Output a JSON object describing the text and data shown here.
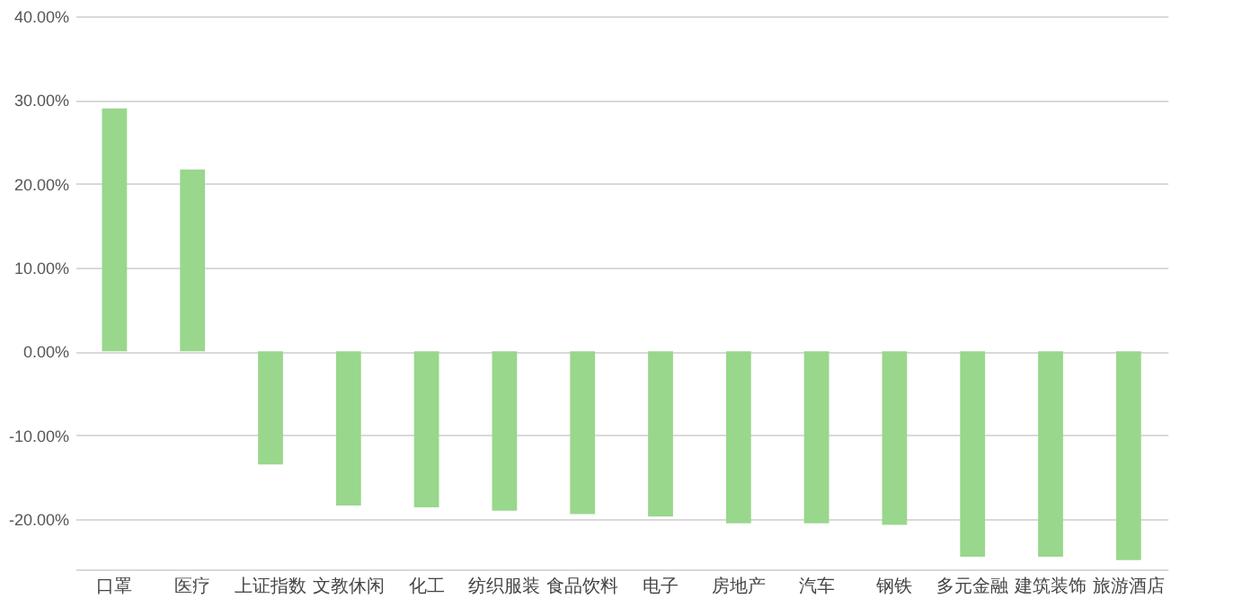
{
  "chart_data": {
    "type": "bar",
    "categories": [
      "口罩",
      "医疗",
      "上证指数",
      "文教休闲",
      "化工",
      "纺织服装",
      "食品饮料",
      "电子",
      "房地产",
      "汽车",
      "钢铁",
      "多元金融",
      "建筑装饰",
      "旅游酒店"
    ],
    "values": [
      29.0,
      21.7,
      -13.5,
      -18.4,
      -18.6,
      -19.0,
      -19.4,
      -19.7,
      -20.5,
      -20.5,
      -20.7,
      -24.5,
      -24.5,
      -24.9
    ],
    "color": "#98d78c",
    "ylim": [
      -26,
      40
    ],
    "yticks": [
      {
        "value": 40,
        "label": "40.00%"
      },
      {
        "value": 30,
        "label": "30.00%"
      },
      {
        "value": 20,
        "label": "20.00%"
      },
      {
        "value": 10,
        "label": "10.00%"
      },
      {
        "value": 0,
        "label": "0.00%"
      },
      {
        "value": -10,
        "label": "-10.00%"
      },
      {
        "value": -20,
        "label": "-20.00%"
      }
    ],
    "grid": "y"
  }
}
